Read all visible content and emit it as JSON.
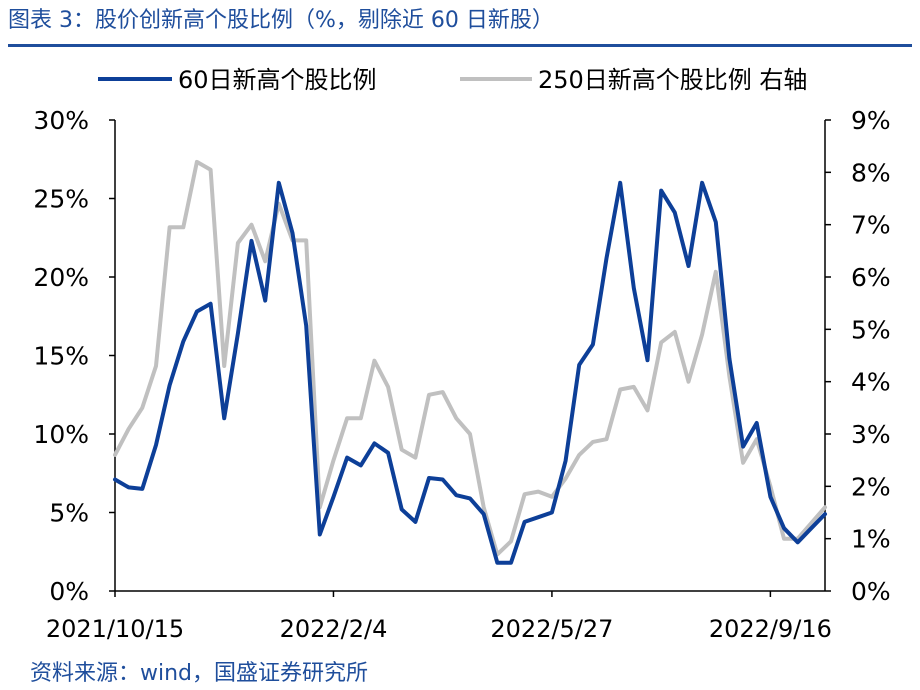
{
  "title": "图表 3：股价创新高个股比例（%，剔除近 60 日新股）",
  "source": "资料来源：wind，国盛证券研究所",
  "colors": {
    "series60": "#0d3f98",
    "series250": "#c0c0c0",
    "title": "#1f4e9c",
    "axis": "#000000"
  },
  "chart_data": {
    "type": "line",
    "x": [
      "2021/10/15",
      "2021/10/22",
      "2021/10/29",
      "2021/11/5",
      "2021/11/12",
      "2021/11/19",
      "2021/11/26",
      "2021/12/3",
      "2021/12/10",
      "2021/12/17",
      "2021/12/24",
      "2021/12/31",
      "2022/1/7",
      "2022/1/14",
      "2022/1/21",
      "2022/1/28",
      "2022/2/4",
      "2022/2/11",
      "2022/2/18",
      "2022/2/25",
      "2022/3/4",
      "2022/3/11",
      "2022/3/18",
      "2022/3/25",
      "2022/4/1",
      "2022/4/8",
      "2022/4/15",
      "2022/4/22",
      "2022/4/29",
      "2022/5/6",
      "2022/5/13",
      "2022/5/20",
      "2022/5/27",
      "2022/6/3",
      "2022/6/10",
      "2022/6/17",
      "2022/6/24",
      "2022/7/1",
      "2022/7/8",
      "2022/7/15",
      "2022/7/22",
      "2022/7/29",
      "2022/8/5",
      "2022/8/12",
      "2022/8/19",
      "2022/8/26",
      "2022/9/2",
      "2022/9/9",
      "2022/9/16",
      "2022/9/23",
      "2022/9/30",
      "2022/10/7",
      "2022/10/14"
    ],
    "x_tick_labels": [
      "2021/10/15",
      "2022/2/4",
      "2022/5/27",
      "2022/9/16"
    ],
    "series": [
      {
        "name": "60日新高个股比例",
        "axis": "left",
        "values": [
          7.1,
          6.6,
          6.5,
          9.3,
          13.1,
          15.9,
          17.8,
          18.3,
          11.0,
          16.4,
          22.3,
          18.5,
          26.0,
          22.8,
          16.9,
          3.6,
          6.0,
          8.5,
          8.0,
          9.4,
          8.8,
          5.2,
          4.4,
          7.2,
          7.1,
          6.1,
          5.9,
          4.9,
          1.8,
          1.8,
          4.4,
          4.7,
          5.0,
          8.3,
          14.4,
          15.7,
          21.2,
          26.0,
          19.3,
          14.7,
          25.5,
          24.1,
          20.7,
          26.0,
          23.5,
          14.8,
          9.2,
          10.7,
          6.0,
          4.0,
          3.1,
          4.0,
          4.9
        ]
      },
      {
        "name": "250日新高个股比例 右轴",
        "axis": "right",
        "values": [
          2.6,
          3.1,
          3.5,
          4.3,
          6.95,
          6.95,
          8.2,
          8.05,
          4.3,
          6.65,
          7.0,
          6.3,
          7.4,
          6.7,
          6.7,
          1.6,
          2.5,
          3.3,
          3.3,
          4.4,
          3.9,
          2.7,
          2.55,
          3.75,
          3.8,
          3.3,
          3.0,
          1.6,
          0.7,
          0.95,
          1.85,
          1.9,
          1.8,
          2.15,
          2.6,
          2.85,
          2.9,
          3.85,
          3.9,
          3.45,
          4.75,
          4.95,
          4.0,
          4.9,
          6.1,
          4.1,
          2.45,
          2.9,
          2.0,
          1.0,
          1.0,
          1.3,
          1.6
        ]
      }
    ],
    "y_left": {
      "min": 0,
      "max": 30,
      "ticks": [
        "0%",
        "5%",
        "10%",
        "15%",
        "20%",
        "25%",
        "30%"
      ]
    },
    "y_right": {
      "min": 0,
      "max": 9,
      "ticks": [
        "0%",
        "1%",
        "2%",
        "3%",
        "4%",
        "5%",
        "6%",
        "7%",
        "8%",
        "9%"
      ]
    },
    "grid": false,
    "legend": "top"
  }
}
